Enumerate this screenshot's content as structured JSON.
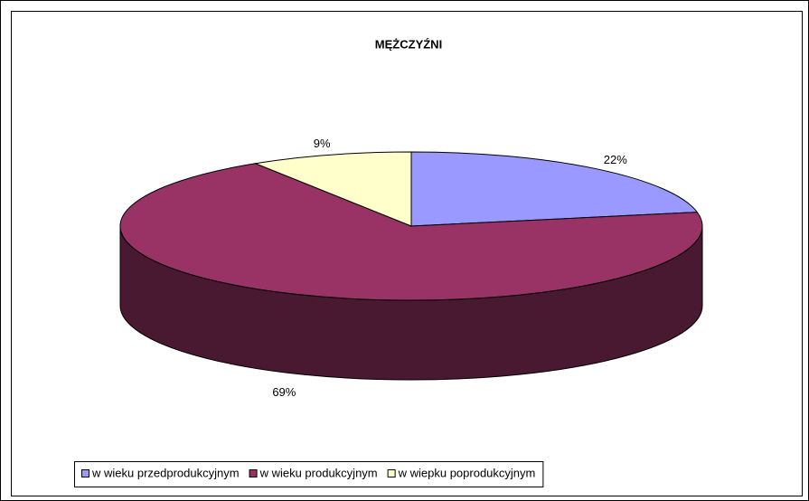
{
  "chart_data": {
    "type": "pie",
    "title": "MĘŻCZYŹNI",
    "categories": [
      "w wieku przedprodukcyjnym",
      "w wieku produkcyjnym",
      "w wiepku poprodukcyjnym"
    ],
    "values": [
      22,
      69,
      9
    ],
    "value_labels": [
      "22%",
      "69%",
      "9%"
    ],
    "colors": [
      "#9999ff",
      "#993366",
      "#ffffcc"
    ],
    "legend": "bottom"
  }
}
